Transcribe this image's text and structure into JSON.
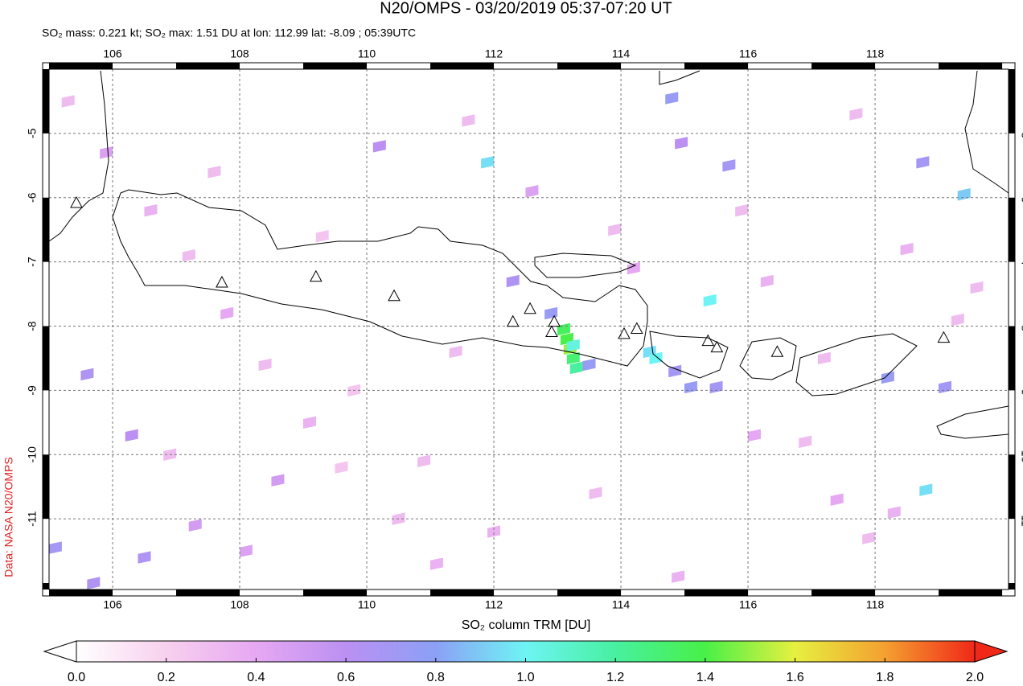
{
  "chart_data": {
    "type": "map",
    "title": "N20/OMPS - 03/20/2019 05:37-07:20 UT",
    "subtitle": "SO₂ mass: 0.221 kt; SO₂ max: 1.51 DU at lon: 112.99 lat: -8.09 ; 05:39UTC",
    "credit": "Data: NASA N20/OMPS",
    "xlim": [
      105.0,
      120.1
    ],
    "ylim": [
      -12.1,
      -4.0
    ],
    "xticks": [
      106,
      108,
      110,
      112,
      114,
      116,
      118
    ],
    "yticks": [
      -5,
      -6,
      -7,
      -8,
      -9,
      -10,
      -11
    ],
    "grid": true,
    "pixels": {
      "lon": [
        113.1,
        113.15,
        113.2,
        113.25,
        113.3,
        113.25,
        114.45,
        114.55,
        111.9,
        115.4,
        119.4,
        118.8,
        112.9,
        113.5,
        114.85,
        115.1,
        115.5,
        118.2,
        119.1,
        114.8,
        114.95,
        115.7,
        118.75,
        110.2,
        106.3,
        105.1,
        105.7,
        105.6,
        106.5,
        107.3,
        108.6,
        112.3,
        105.3,
        105.9,
        106.6,
        107.2,
        107.8,
        108.4,
        109.1,
        109.6,
        110.5,
        111.1,
        111.6,
        112.6,
        113.9,
        114.2,
        115.9,
        116.3,
        116.9,
        117.4,
        117.9,
        118.5,
        119.6,
        106.9,
        108.1,
        109.8,
        110.9,
        112.0,
        113.6,
        116.1,
        117.2,
        118.3,
        119.3,
        107.6,
        109.3,
        111.4,
        114.9,
        117.7
      ],
      "lat": [
        -8.05,
        -8.2,
        -8.35,
        -8.5,
        -8.65,
        -8.3,
        -8.4,
        -8.5,
        -5.45,
        -7.6,
        -5.95,
        -10.55,
        -7.8,
        -8.6,
        -8.7,
        -8.95,
        -8.95,
        -8.8,
        -8.95,
        -4.45,
        -5.15,
        -5.5,
        -5.45,
        -5.2,
        -9.7,
        -11.45,
        -12.0,
        -8.75,
        -11.6,
        -11.1,
        -10.4,
        -7.3,
        -4.5,
        -5.3,
        -6.2,
        -6.9,
        -7.8,
        -8.6,
        -9.5,
        -10.2,
        -11.0,
        -11.7,
        -4.8,
        -5.9,
        -6.5,
        -7.1,
        -6.2,
        -7.3,
        -9.8,
        -10.7,
        -11.3,
        -6.8,
        -7.4,
        -10.0,
        -11.5,
        -9.0,
        -10.1,
        -11.2,
        -10.6,
        -9.7,
        -8.5,
        -10.9,
        -7.9,
        -5.6,
        -6.6,
        -8.4,
        -11.9,
        -4.7
      ],
      "values": [
        1.35,
        1.4,
        1.5,
        1.3,
        1.2,
        1.05,
        0.95,
        1.0,
        0.95,
        1.0,
        0.9,
        0.95,
        0.75,
        0.75,
        0.7,
        0.75,
        0.7,
        0.75,
        0.7,
        0.75,
        0.6,
        0.7,
        0.7,
        0.6,
        0.6,
        0.7,
        0.65,
        0.65,
        0.65,
        0.5,
        0.5,
        0.65,
        0.3,
        0.45,
        0.35,
        0.3,
        0.4,
        0.3,
        0.35,
        0.25,
        0.3,
        0.35,
        0.3,
        0.45,
        0.3,
        0.4,
        0.3,
        0.35,
        0.3,
        0.4,
        0.3,
        0.35,
        0.3,
        0.3,
        0.45,
        0.25,
        0.3,
        0.35,
        0.3,
        0.4,
        0.3,
        0.35,
        0.3,
        0.3,
        0.25,
        0.3,
        0.35,
        0.3
      ]
    },
    "volcanoes": {
      "lon": [
        105.43,
        107.72,
        109.2,
        110.43,
        112.3,
        112.57,
        112.95,
        112.91,
        114.05,
        114.25,
        115.37,
        115.51,
        116.46,
        119.08
      ],
      "lat": [
        -6.09,
        -7.33,
        -7.24,
        -7.54,
        -7.94,
        -7.74,
        -7.94,
        -8.1,
        -8.13,
        -8.05,
        -8.24,
        -8.34,
        -8.41,
        -8.19
      ]
    },
    "colorbar": {
      "label": "SO₂ column TRM [DU]",
      "clim": [
        0,
        2
      ],
      "ticks": [
        {
          "value": 0,
          "label": "0.0"
        },
        {
          "value": 0.2,
          "label": "0.2"
        },
        {
          "value": 0.4,
          "label": "0.4"
        },
        {
          "value": 0.6,
          "label": "0.6"
        },
        {
          "value": 0.8,
          "label": "0.8"
        },
        {
          "value": 1.0,
          "label": "1.0"
        },
        {
          "value": 1.2,
          "label": "1.2"
        },
        {
          "value": 1.4,
          "label": "1.4"
        },
        {
          "value": 1.6,
          "label": "1.6"
        },
        {
          "value": 1.8,
          "label": "1.8"
        },
        {
          "value": 2.0,
          "label": "2.0"
        }
      ],
      "colors": [
        "#ffffff",
        "#f8d0ee",
        "#e6a8f2",
        "#bb90f2",
        "#8ca0f6",
        "#6ef4f4",
        "#48f0a0",
        "#48f048",
        "#e6f040",
        "#f4a030",
        "#f02818"
      ]
    }
  }
}
